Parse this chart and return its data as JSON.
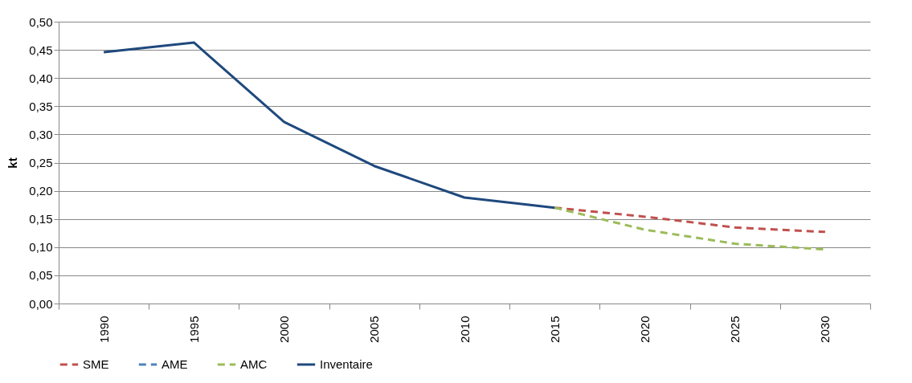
{
  "chart_data": {
    "type": "line",
    "ylabel": "kt",
    "categories": [
      "1990",
      "1995",
      "2000",
      "2005",
      "2010",
      "2015",
      "2020",
      "2025",
      "2030"
    ],
    "series": [
      {
        "name": "SME",
        "color": "#c0504d",
        "line_style": "dashed",
        "values": [
          null,
          null,
          null,
          null,
          null,
          0.17,
          0.154,
          0.135,
          0.127
        ]
      },
      {
        "name": "AME",
        "color": "#4f81bd",
        "line_style": "dashed",
        "values": [
          null,
          null,
          null,
          null,
          null,
          null,
          null,
          null,
          null
        ]
      },
      {
        "name": "AMC",
        "color": "#9bbb59",
        "line_style": "dashed",
        "values": [
          null,
          null,
          null,
          null,
          null,
          0.17,
          0.131,
          0.106,
          0.096
        ]
      },
      {
        "name": "Inventaire",
        "color": "#1f497d",
        "line_style": "solid",
        "values": [
          0.446,
          0.463,
          0.322,
          0.244,
          0.188,
          0.17,
          null,
          null,
          null
        ]
      }
    ],
    "ylim": [
      0,
      0.5
    ],
    "yticks": [
      {
        "value": 0,
        "label": "0,00"
      },
      {
        "value": 0.05,
        "label": "0,05"
      },
      {
        "value": 0.1,
        "label": "0,10"
      },
      {
        "value": 0.15,
        "label": "0,15"
      },
      {
        "value": 0.2,
        "label": "0,20"
      },
      {
        "value": 0.25,
        "label": "0,25"
      },
      {
        "value": 0.3,
        "label": "0,30"
      },
      {
        "value": 0.35,
        "label": "0,35"
      },
      {
        "value": 0.4,
        "label": "0,40"
      },
      {
        "value": 0.45,
        "label": "0,45"
      },
      {
        "value": 0.5,
        "label": "0,50"
      }
    ],
    "grid": "y",
    "legend": "bottom",
    "marker": "none"
  }
}
